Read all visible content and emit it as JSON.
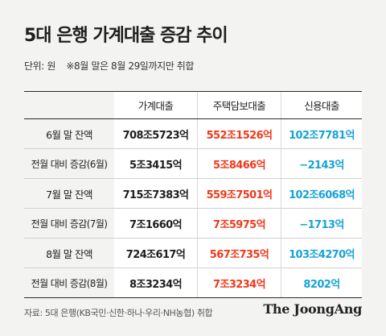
{
  "title": "5대 은행 가계대출 증감 추이",
  "unit_label": "단위: 원",
  "note": "※8월 말은 8월 29일까지만 취합",
  "table": {
    "headers": [
      "",
      "가계대출",
      "주택담보대출",
      "신용대출"
    ],
    "rows": [
      {
        "label": "6월 말 잔액",
        "total": "708조5723억",
        "mortgage": "552조1526억",
        "credit": "102조7781억"
      },
      {
        "label": "전월 대비 증감(6월)",
        "total": "5조3415억",
        "mortgage": "5조8466억",
        "credit": "−2143억"
      },
      {
        "label": "7월 말 잔액",
        "total": "715조7383억",
        "mortgage": "559조7501억",
        "credit": "102조6068억"
      },
      {
        "label": "전월 대비 증감(7월)",
        "total": "7조1660억",
        "mortgage": "7조5975억",
        "credit": "−1713억"
      },
      {
        "label": "8월 말 잔액",
        "total": "724조617억",
        "mortgage": "567조735억",
        "credit": "103조4270억"
      },
      {
        "label": "전월 대비 증감(8월)",
        "total": "8조3234억",
        "mortgage": "7조3234억",
        "credit": "8202억"
      }
    ]
  },
  "source": "자료: 5대 은행(KB국민·신한·하나·우리·NH농협) 취합",
  "logo": "The JoongAng",
  "colors": {
    "mortgage": "#f0381c",
    "credit": "#17a3d6",
    "background": "#f3f3f1"
  }
}
